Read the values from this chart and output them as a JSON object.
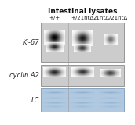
{
  "title": "Intestinal lysates",
  "col_labels": [
    "+/+",
    "+/21ntΔ",
    "21ntΔ/21ntΔ"
  ],
  "row_labels": [
    "Ki-67",
    "cyclin A2",
    "LC"
  ],
  "fig_bg": "#ffffff",
  "ki67_bg": "#c8c8c8",
  "cycA2_bg": "#c8c8c8",
  "lc_bg": "#b8cfe0",
  "border_color": "#666666",
  "label_color": "#222222",
  "title_fontsize": 6.5,
  "label_fontsize": 6,
  "col_label_fontsize": 5
}
